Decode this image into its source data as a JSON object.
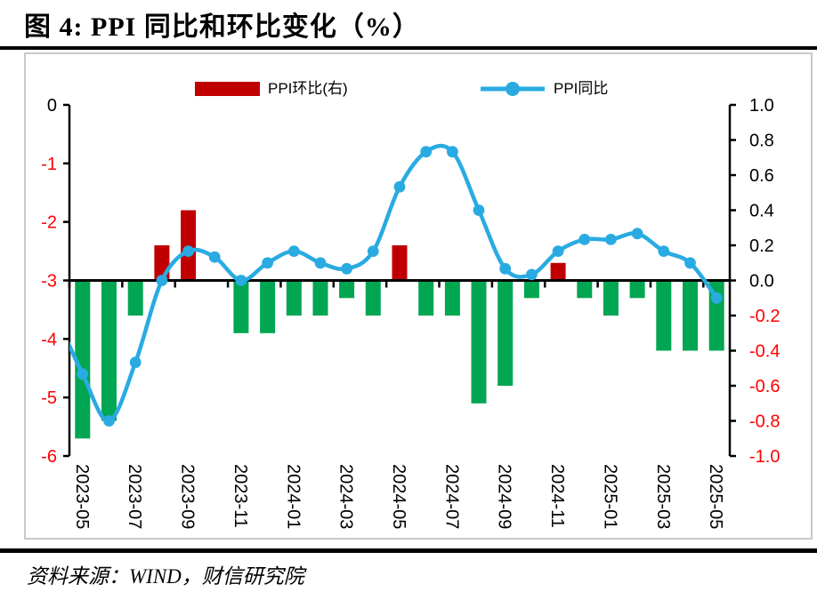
{
  "figure": {
    "title": "图 4: PPI 同比和环比变化（%）",
    "source": "资料来源：WIND，财信研究院"
  },
  "chart_data": {
    "type": "combo",
    "title": "图 4: PPI 同比和环比变化（%）",
    "legend_position": "top",
    "grid": "off",
    "categories": [
      "2023-05",
      "2023-06",
      "2023-07",
      "2023-08",
      "2023-09",
      "2023-10",
      "2023-11",
      "2023-12",
      "2024-01",
      "2024-02",
      "2024-03",
      "2024-04",
      "2024-05",
      "2024-06",
      "2024-07",
      "2024-08",
      "2024-09",
      "2024-10",
      "2024-11",
      "2024-12",
      "2025-01",
      "2025-02",
      "2025-03",
      "2025-04",
      "2025-05"
    ],
    "x_tick_labels": [
      "2023-05",
      "2023-07",
      "2023-09",
      "2023-11",
      "2024-01",
      "2024-03",
      "2024-05",
      "2024-07",
      "2024-09",
      "2024-11",
      "2025-01",
      "2025-03",
      "2025-05"
    ],
    "series": [
      {
        "name": "PPI环比(右)",
        "type": "bar",
        "axis": "right",
        "values": [
          -0.9,
          -0.8,
          -0.2,
          0.2,
          0.4,
          0.0,
          -0.3,
          -0.3,
          -0.2,
          -0.2,
          -0.1,
          -0.2,
          0.2,
          -0.2,
          -0.2,
          -0.7,
          -0.6,
          -0.1,
          0.1,
          -0.1,
          -0.2,
          -0.1,
          -0.4,
          -0.4,
          -0.4
        ]
      },
      {
        "name": "PPI同比",
        "type": "line",
        "axis": "left",
        "values": [
          -4.6,
          -5.4,
          -4.4,
          -3.0,
          -2.5,
          -2.6,
          -3.0,
          -2.7,
          -2.5,
          -2.7,
          -2.8,
          -2.5,
          -1.4,
          -0.8,
          -0.8,
          -1.8,
          -2.8,
          -2.9,
          -2.5,
          -2.3,
          -2.3,
          -2.2,
          -2.5,
          -2.7,
          -3.3
        ],
        "lead_in_prior_value": -3.6
      }
    ],
    "left_axis": {
      "min": -6,
      "max": 0,
      "tick_labels": [
        "0",
        "-1",
        "-2",
        "-3",
        "-4",
        "-5",
        "-6"
      ]
    },
    "right_axis": {
      "min": -1.0,
      "max": 1.0,
      "tick_labels": [
        "1.0",
        "0.8",
        "0.6",
        "0.4",
        "0.2",
        "0.0",
        "-0.2",
        "-0.4",
        "-0.6",
        "-0.8",
        "-1.0"
      ]
    },
    "colors": {
      "line": "#29ABE2",
      "bar_positive": "#C00000",
      "bar_negative": "#00A651",
      "tick_negative": "#FF0000",
      "tick_default": "#000000",
      "axis": "#000000",
      "panel_border": "#C9C9C9"
    }
  }
}
